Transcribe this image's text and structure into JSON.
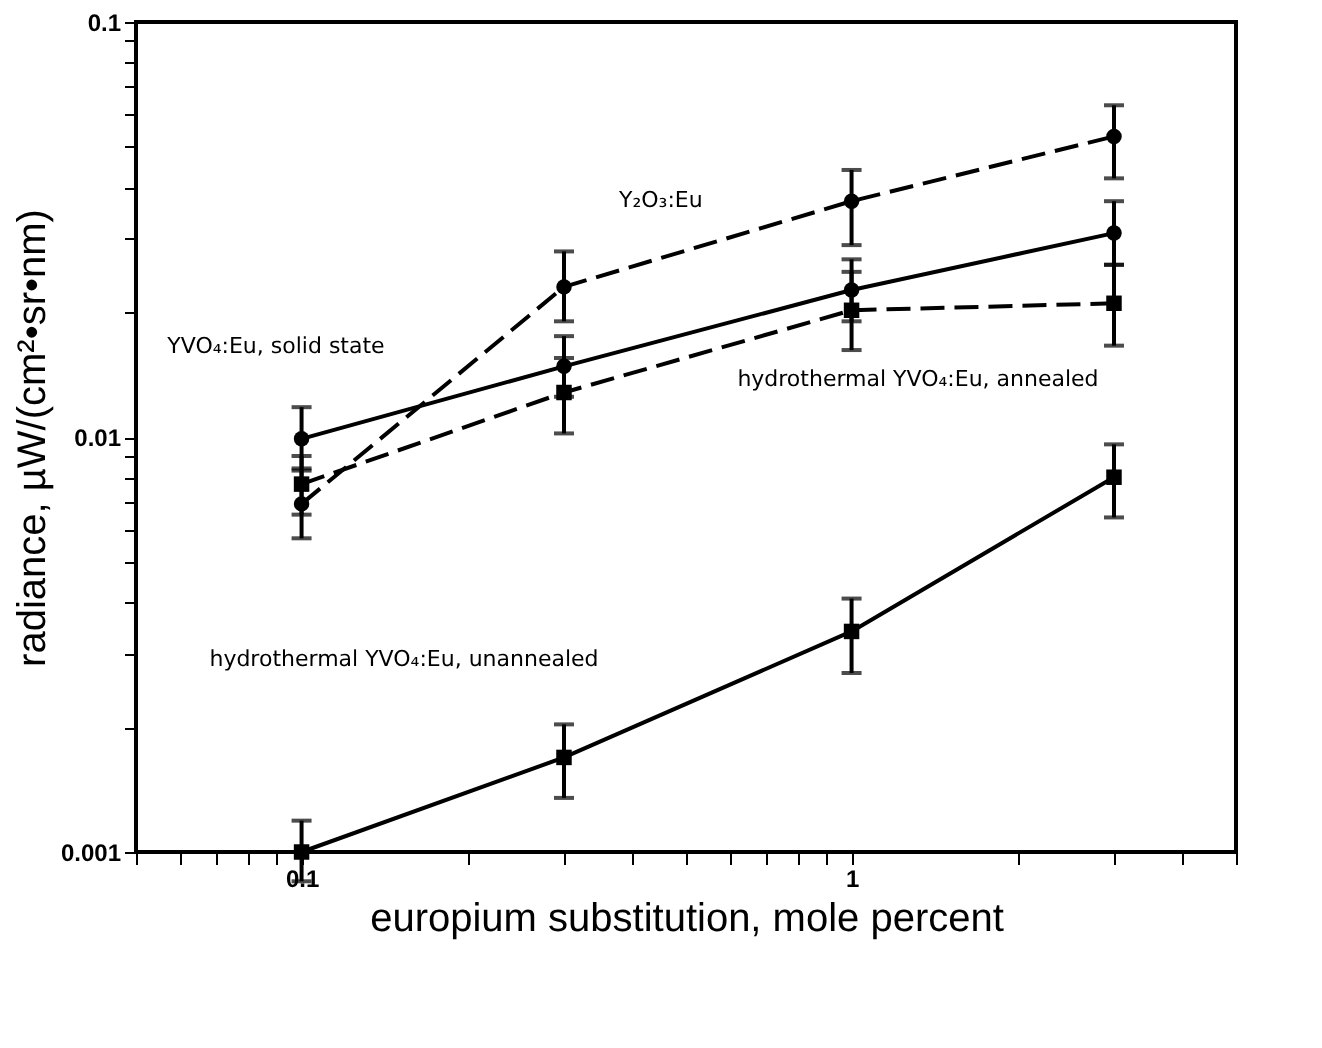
{
  "chart_data": {
    "type": "line",
    "xlabel": "europium substitution, mole percent",
    "ylabel": "radiance, µW/(cm²•sr•nm)",
    "log": "xy",
    "grid": false,
    "xlim": [
      0.05,
      5
    ],
    "ylim": [
      0.001,
      0.1
    ],
    "xticks": [
      {
        "value": 0.05,
        "label": null
      },
      {
        "value": 0.06,
        "label": null
      },
      {
        "value": 0.07,
        "label": null
      },
      {
        "value": 0.08,
        "label": null
      },
      {
        "value": 0.09,
        "label": null
      },
      0.1,
      {
        "value": 0.2,
        "label": null
      },
      {
        "value": 0.3,
        "label": null
      },
      {
        "value": 0.4,
        "label": null
      },
      {
        "value": 0.5,
        "label": null
      },
      {
        "value": 0.6,
        "label": null
      },
      {
        "value": 0.7,
        "label": null
      },
      {
        "value": 0.8,
        "label": null
      },
      {
        "value": 0.9,
        "label": null
      },
      1,
      {
        "value": 2,
        "label": null
      },
      {
        "value": 3,
        "label": null
      },
      {
        "value": 4,
        "label": null
      },
      {
        "value": 5,
        "label": null
      }
    ],
    "yticks": [
      0.001,
      {
        "value": 0.002,
        "label": null
      },
      {
        "value": 0.003,
        "label": null
      },
      {
        "value": 0.004,
        "label": null
      },
      {
        "value": 0.005,
        "label": null
      },
      {
        "value": 0.006,
        "label": null
      },
      {
        "value": 0.007,
        "label": null
      },
      {
        "value": 0.008,
        "label": null
      },
      {
        "value": 0.009,
        "label": null
      },
      0.01,
      {
        "value": 0.02,
        "label": null
      },
      {
        "value": 0.03,
        "label": null
      },
      {
        "value": 0.04,
        "label": null
      },
      {
        "value": 0.05,
        "label": null
      },
      {
        "value": 0.06,
        "label": null
      },
      {
        "value": 0.07,
        "label": null
      },
      {
        "value": 0.08,
        "label": null
      },
      {
        "value": 0.09,
        "label": null
      },
      0.1
    ],
    "x": [
      0.1,
      0.3,
      1,
      3
    ],
    "series": [
      {
        "name": "Y₂O₃:Eu",
        "color": "#000000",
        "line_style": "dashed",
        "marker": "circle",
        "values": [
          0.0069,
          0.023,
          0.037,
          0.053
        ],
        "errors": [
          [
            0.0057,
            0.0083
          ],
          [
            0.019,
            0.028
          ],
          [
            0.029,
            0.044
          ],
          [
            0.042,
            0.063
          ]
        ]
      },
      {
        "name": "YVO₄:Eu, solid state",
        "color": "#000000",
        "line_style": "solid",
        "marker": "circle",
        "values": [
          0.0099,
          0.0148,
          0.0226,
          0.031
        ],
        "errors": [
          [
            0.0084,
            0.0118
          ],
          [
            0.0125,
            0.0175
          ],
          [
            0.019,
            0.0268
          ],
          [
            0.026,
            0.037
          ]
        ]
      },
      {
        "name": "hydrothermal YVO₄:Eu, annealed",
        "color": "#000000",
        "line_style": "dashed",
        "marker": "square",
        "values": [
          0.0077,
          0.0128,
          0.0202,
          0.021
        ],
        "errors": [
          [
            0.0065,
            0.009
          ],
          [
            0.0102,
            0.0155
          ],
          [
            0.0162,
            0.025
          ],
          [
            0.0166,
            0.026
          ]
        ]
      },
      {
        "name": "hydrothermal YVO₄:Eu, unannealed",
        "color": "#000000",
        "line_style": "solid",
        "marker": "square",
        "values": [
          0.001,
          0.00169,
          0.0034,
          0.008
        ],
        "errors": [
          [
            0.00085,
            0.00119
          ],
          [
            0.00135,
            0.00203
          ],
          [
            0.0027,
            0.00408
          ],
          [
            0.0064,
            0.0096
          ]
        ]
      }
    ]
  }
}
